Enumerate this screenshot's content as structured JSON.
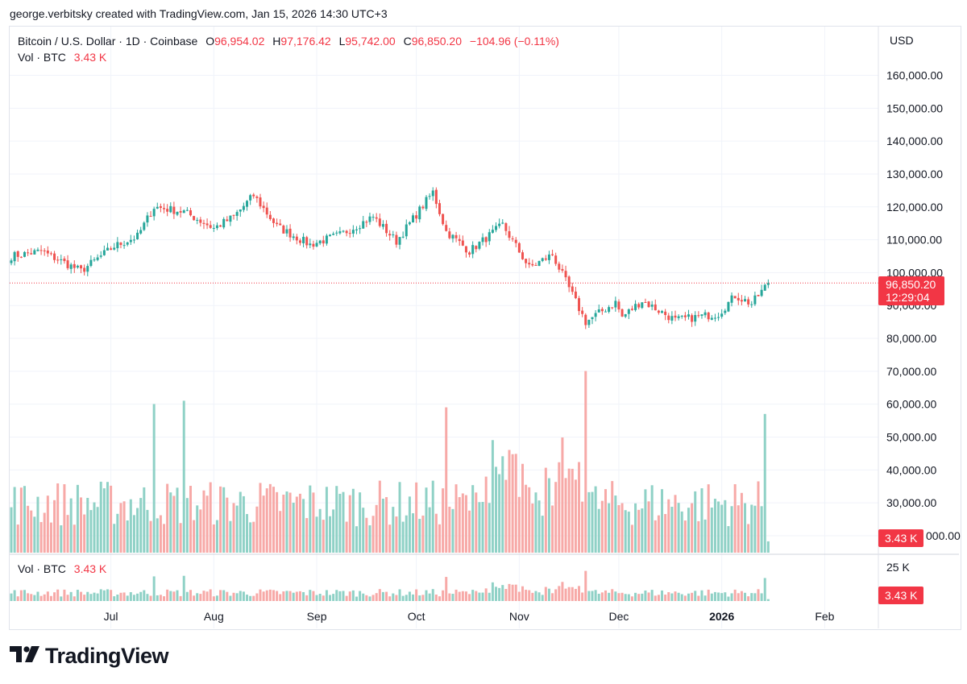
{
  "header": {
    "credit": "george.verbitsky created with TradingView.com, Jan 15, 2026 14:30 UTC+3"
  },
  "legend": {
    "symbol": "Bitcoin / U.S. Dollar · 1D · Coinbase",
    "open_key": "O",
    "open": "96,954.02",
    "high_key": "H",
    "high": "97,176.42",
    "low_key": "L",
    "low": "95,742.00",
    "close_key": "C",
    "close": "96,850.20",
    "change": "−104.96 (−0.11%)",
    "vol_label": "Vol · BTC",
    "vol_value": "3.43 K"
  },
  "vol_pane": {
    "label": "Vol · BTC",
    "value": "3.43 K",
    "tick": "25 K",
    "badge": "3.43 K"
  },
  "price_axis": {
    "currency": "USD",
    "last_price_badge": "96,850.20",
    "countdown_badge": "12:29:04",
    "volume_badge": "3.43 K"
  },
  "brand": {
    "name": "TradingView"
  },
  "colors": {
    "up": "#26a69a",
    "down": "#ef5350",
    "up_vol": "#8fd1c6",
    "down_vol": "#f7a9a7",
    "last": "#f23645"
  },
  "chart_data": {
    "type": "candlestick",
    "title": "Bitcoin / U.S. Dollar · 1D · Coinbase",
    "ylabel": "USD",
    "ylim": [
      0,
      170000
    ],
    "y_ticks": [
      "160,000.00",
      "150,000.00",
      "140,000.00",
      "130,000.00",
      "120,000.00",
      "110,000.00",
      "100,000.00",
      "90,000.00",
      "80,000.00",
      "70,000.00",
      "60,000.00",
      "50,000.00",
      "40,000.00",
      "30,000.00",
      "20,000.00"
    ],
    "y_tick_values": [
      160000,
      150000,
      140000,
      130000,
      120000,
      110000,
      100000,
      90000,
      80000,
      70000,
      60000,
      50000,
      40000,
      30000,
      20000
    ],
    "x_ticks": [
      "Jul",
      "Aug",
      "Sep",
      "Oct",
      "Nov",
      "Dec",
      "2026",
      "Feb"
    ],
    "x_tick_dates": [
      "2025-07-01",
      "2025-08-01",
      "2025-09-01",
      "2025-10-01",
      "2025-11-01",
      "2025-12-01",
      "2026-01-01",
      "2026-02-01"
    ],
    "date_range": [
      "2025-06-01",
      "2026-02-28"
    ],
    "first_candle_date": "2025-06-01",
    "last_close": 96850.2,
    "close_path": [
      {
        "date": "2025-06-01",
        "close": 105000
      },
      {
        "date": "2025-06-10",
        "close": 106500
      },
      {
        "date": "2025-06-22",
        "close": 100500
      },
      {
        "date": "2025-07-02",
        "close": 108000
      },
      {
        "date": "2025-07-09",
        "close": 111000
      },
      {
        "date": "2025-07-14",
        "close": 120000
      },
      {
        "date": "2025-07-23",
        "close": 118500
      },
      {
        "date": "2025-08-01",
        "close": 113500
      },
      {
        "date": "2025-08-07",
        "close": 117000
      },
      {
        "date": "2025-08-13",
        "close": 123500
      },
      {
        "date": "2025-08-20",
        "close": 114000
      },
      {
        "date": "2025-08-30",
        "close": 108500
      },
      {
        "date": "2025-09-08",
        "close": 111500
      },
      {
        "date": "2025-09-18",
        "close": 117000
      },
      {
        "date": "2025-09-25",
        "close": 109500
      },
      {
        "date": "2025-10-06",
        "close": 124500
      },
      {
        "date": "2025-10-10",
        "close": 112500
      },
      {
        "date": "2025-10-17",
        "close": 106500
      },
      {
        "date": "2025-10-27",
        "close": 114500
      },
      {
        "date": "2025-11-04",
        "close": 101500
      },
      {
        "date": "2025-11-11",
        "close": 105500
      },
      {
        "date": "2025-11-21",
        "close": 85000
      },
      {
        "date": "2025-11-30",
        "close": 91000
      },
      {
        "date": "2025-12-02",
        "close": 86500
      },
      {
        "date": "2025-12-08",
        "close": 91500
      },
      {
        "date": "2025-12-18",
        "close": 85500
      },
      {
        "date": "2025-12-31",
        "close": 87500
      },
      {
        "date": "2026-01-05",
        "close": 93000
      },
      {
        "date": "2026-01-10",
        "close": 90500
      },
      {
        "date": "2026-01-15",
        "close": 96850.2
      }
    ],
    "volume_spikes": [
      {
        "date": "2025-07-14",
        "volume": 45
      },
      {
        "date": "2025-07-23",
        "volume": 46
      },
      {
        "date": "2025-10-10",
        "volume": 44
      },
      {
        "date": "2025-11-21",
        "volume": 55
      },
      {
        "date": "2026-01-14",
        "volume": 42
      }
    ]
  }
}
